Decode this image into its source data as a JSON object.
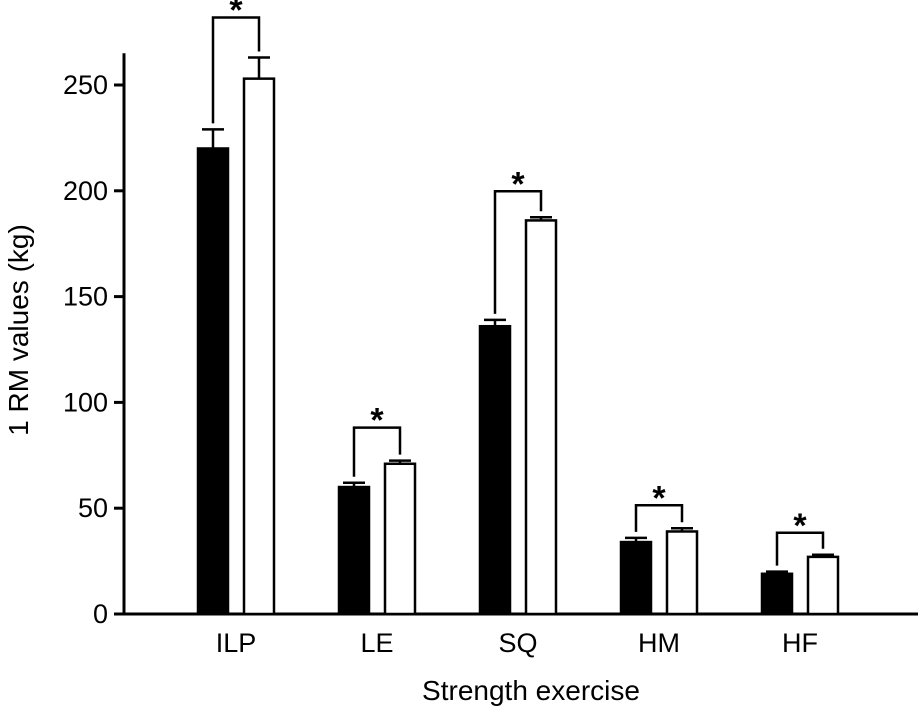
{
  "chart_data": {
    "type": "bar",
    "title": "",
    "xlabel": "Strength exercise",
    "ylabel": "1 RM values (kg)",
    "ylim": [
      0,
      265
    ],
    "yticks": [
      0,
      50,
      100,
      150,
      200,
      250
    ],
    "categories": [
      "ILP",
      "LE",
      "SQ",
      "HM",
      "HF"
    ],
    "series": [
      {
        "fill": "#000000",
        "values": [
          220,
          60,
          136,
          34,
          19
        ],
        "errors": [
          9,
          2,
          3,
          2,
          1
        ]
      },
      {
        "fill": "#ffffff",
        "values": [
          253,
          71,
          186,
          39,
          27
        ],
        "errors": [
          10,
          1.5,
          1.5,
          1.5,
          1
        ]
      }
    ],
    "significance": [
      {
        "category": "ILP",
        "label": "*"
      },
      {
        "category": "LE",
        "label": "*"
      },
      {
        "category": "SQ",
        "label": "*"
      },
      {
        "category": "HM",
        "label": "*"
      },
      {
        "category": "HF",
        "label": "*"
      }
    ],
    "grid": false,
    "legend": "none"
  }
}
